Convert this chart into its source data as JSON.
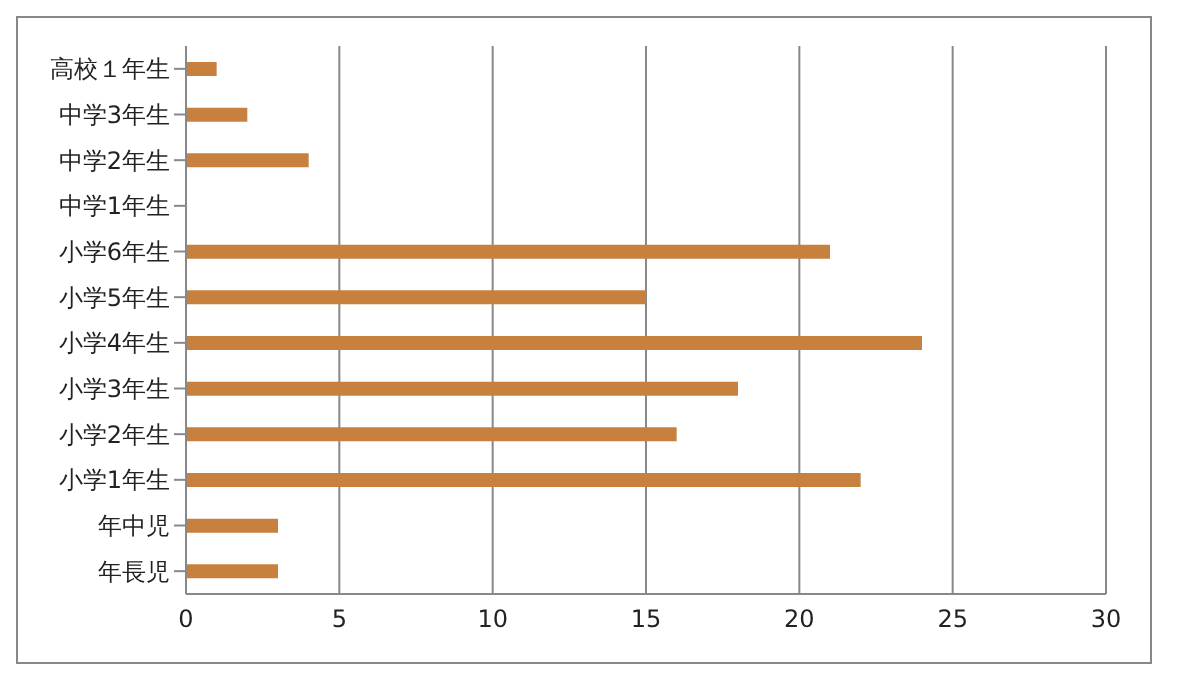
{
  "chart_data": {
    "type": "bar",
    "orientation": "horizontal",
    "categories": [
      "高校１年生",
      "中学3年生",
      "中学2年生",
      "中学1年生",
      "小学6年生",
      "小学5年生",
      "小学4年生",
      "小学3年生",
      "小学2年生",
      "小学1年生",
      "年中児",
      "年長児"
    ],
    "values": [
      1,
      2,
      4,
      0,
      21,
      15,
      24,
      18,
      16,
      22,
      3,
      3
    ],
    "color": "#c8803f",
    "xlim": [
      0,
      30
    ],
    "xticks": [
      0,
      5,
      10,
      15,
      20,
      25,
      30
    ],
    "grid": "x"
  }
}
